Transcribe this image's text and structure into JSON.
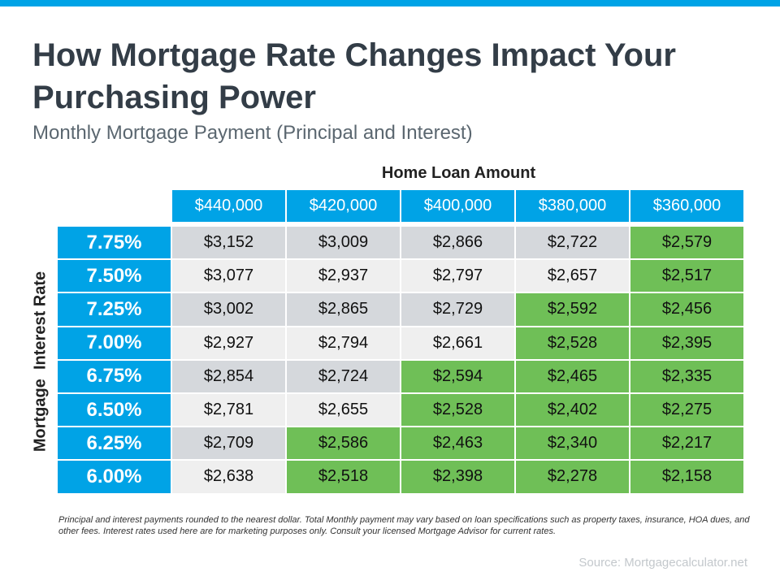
{
  "header": {
    "title": "How Mortgage Rate Changes Impact Your Purchasing Power",
    "subtitle": "Monthly Mortgage Payment (Principal and Interest)"
  },
  "table": {
    "column_title": "Home Loan Amount",
    "row_title": "Mortgage  Interest Rate",
    "columns": [
      "$440,000",
      "$420,000",
      "$400,000",
      "$380,000",
      "$360,000"
    ],
    "highlight_color": "#6fbf57",
    "rows": [
      {
        "rate": "7.75%",
        "payments": [
          "$3,152",
          "$3,009",
          "$2,866",
          "$2,722",
          "$2,579"
        ],
        "green_from": 4
      },
      {
        "rate": "7.50%",
        "payments": [
          "$3,077",
          "$2,937",
          "$2,797",
          "$2,657",
          "$2,517"
        ],
        "green_from": 4
      },
      {
        "rate": "7.25%",
        "payments": [
          "$3,002",
          "$2,865",
          "$2,729",
          "$2,592",
          "$2,456"
        ],
        "green_from": 3
      },
      {
        "rate": "7.00%",
        "payments": [
          "$2,927",
          "$2,794",
          "$2,661",
          "$2,528",
          "$2,395"
        ],
        "green_from": 3
      },
      {
        "rate": "6.75%",
        "payments": [
          "$2,854",
          "$2,724",
          "$2,594",
          "$2,465",
          "$2,335"
        ],
        "green_from": 2
      },
      {
        "rate": "6.50%",
        "payments": [
          "$2,781",
          "$2,655",
          "$2,528",
          "$2,402",
          "$2,275"
        ],
        "green_from": 2
      },
      {
        "rate": "6.25%",
        "payments": [
          "$2,709",
          "$2,586",
          "$2,463",
          "$2,340",
          "$2,217"
        ],
        "green_from": 1
      },
      {
        "rate": "6.00%",
        "payments": [
          "$2,638",
          "$2,518",
          "$2,398",
          "$2,278",
          "$2,158"
        ],
        "green_from": 1
      }
    ]
  },
  "footnote": "Principal and interest payments rounded to the nearest dollar. Total Monthly payment may vary based on loan specifications such as property taxes, insurance, HOA dues, and other fees. Interest rates used here are for marketing purposes only. Consult your licensed Mortgage Advisor for current rates.",
  "source": "Source: Mortgagecalculator.net"
}
